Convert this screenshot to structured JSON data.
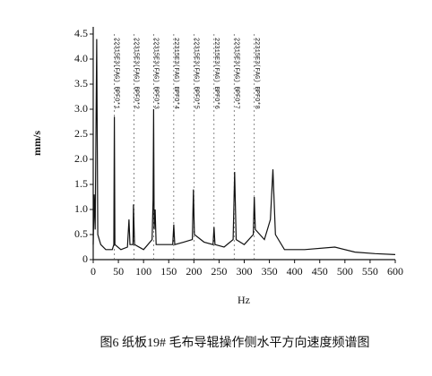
{
  "chart_data": {
    "type": "line",
    "x_label": "Hz",
    "y_label": "mm/s",
    "caption": "图6  纸板19# 毛布导辊操作侧水平方向速度频谱图",
    "x": [
      0,
      2,
      4,
      7,
      9,
      15,
      25,
      38,
      41,
      42,
      43,
      55,
      68,
      71,
      73,
      79,
      80,
      82,
      100,
      117,
      119,
      120,
      121,
      123,
      125,
      140,
      158,
      160,
      162,
      180,
      197,
      199,
      201,
      220,
      238,
      240,
      242,
      260,
      278,
      281,
      284,
      300,
      318,
      320,
      322,
      340,
      352,
      357,
      362,
      380,
      420,
      480,
      520,
      560,
      600
    ],
    "series": [
      {
        "color": "#111111",
        "values": [
          0.3,
          1.3,
          0.6,
          4.4,
          0.5,
          0.3,
          0.2,
          0.2,
          0.3,
          2.85,
          0.3,
          0.2,
          0.25,
          0.8,
          0.3,
          0.3,
          1.1,
          0.3,
          0.2,
          0.4,
          1.2,
          3.0,
          0.6,
          1.0,
          0.3,
          0.3,
          0.3,
          0.7,
          0.3,
          0.35,
          0.4,
          1.4,
          0.5,
          0.35,
          0.3,
          0.65,
          0.3,
          0.25,
          0.4,
          1.75,
          0.4,
          0.3,
          0.5,
          1.25,
          0.6,
          0.4,
          0.8,
          1.8,
          0.5,
          0.2,
          0.2,
          0.25,
          0.15,
          0.12,
          0.1
        ]
      }
    ],
    "annotations": [
      {
        "x": 42,
        "label": "22315E3(FAG) BPFO*1"
      },
      {
        "x": 81,
        "label": "22315E3(FAG) BPFO*2"
      },
      {
        "x": 120,
        "label": "22315E3(FAG) BPFO*3"
      },
      {
        "x": 160,
        "label": "22315E3(FAG) BPFO*4"
      },
      {
        "x": 200,
        "label": "22315E3(FAG) BPFO*5"
      },
      {
        "x": 240,
        "label": "22315E3(FAG) BPFO*6"
      },
      {
        "x": 280,
        "label": "22315E3(FAG) BPFO*7"
      },
      {
        "x": 320,
        "label": "22315E3(FAG) BPFO*8"
      }
    ],
    "xlim": [
      0,
      600
    ],
    "xticks": [
      0,
      50,
      100,
      150,
      200,
      250,
      300,
      350,
      400,
      450,
      500,
      550,
      600
    ],
    "ylim": [
      0,
      4.5
    ],
    "yticks": [
      0,
      0.5,
      {
        "value": 1,
        "label": "1.0"
      },
      1.5,
      {
        "value": 2,
        "label": "2.0"
      },
      2.5,
      {
        "value": 3,
        "label": "3.0"
      },
      3.5,
      {
        "value": 4,
        "label": "4.0"
      },
      4.5
    ]
  }
}
